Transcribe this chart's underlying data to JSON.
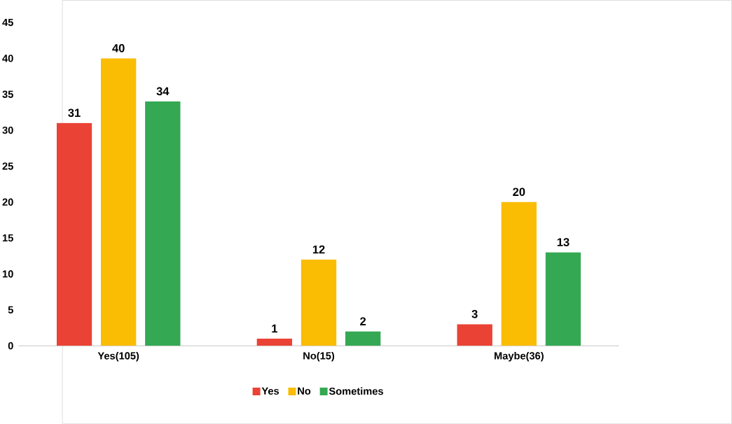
{
  "chart_data": {
    "type": "bar",
    "categories": [
      "Yes(105)",
      "No(15)",
      "Maybe(36)"
    ],
    "series": [
      {
        "name": "Yes",
        "color": "#ea4335",
        "values": [
          31,
          1,
          3
        ]
      },
      {
        "name": "No",
        "color": "#fbbc04",
        "values": [
          40,
          12,
          20
        ]
      },
      {
        "name": "Sometimes",
        "color": "#34a853",
        "values": [
          34,
          2,
          13
        ]
      }
    ],
    "ylim": [
      0,
      45
    ],
    "yticks": [
      0,
      5,
      10,
      15,
      20,
      25,
      30,
      35,
      40,
      45
    ],
    "grid": false,
    "legend": "bottom",
    "data_labels": true
  }
}
